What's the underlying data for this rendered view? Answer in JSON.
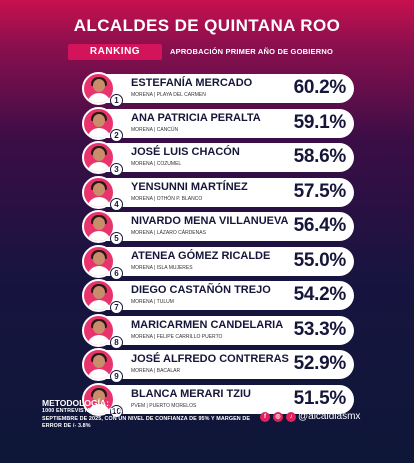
{
  "title": "ALCALDES DE QUINTANA ROO",
  "badge": "RANKING",
  "subtitle": "APROBACIÓN PRIMER AÑO DE GOBIERNO",
  "methodology": {
    "label": "METODOLOGÍA:",
    "text": "1000 ENTREVISTAS A NIVEL LOCAL, REALIZADAS DEL 15 AL 18 DE SEPTIEMBRE DE 2025, CON UN NIVEL DE CONFIANZA DE 95% Y MARGEN DE ERROR DE /- 3.8%"
  },
  "social": {
    "icons": [
      "facebook-icon",
      "instagram-icon",
      "tiktok-icon"
    ],
    "handle": "@alcaldiasmx"
  },
  "colors": {
    "accent": "#d4145a",
    "row_bg": "#ffffff",
    "text_dark": "#16163a"
  },
  "chart_data": {
    "type": "table",
    "title": "ALCALDES DE QUINTANA ROO",
    "rows": [
      {
        "rank": "1",
        "name": "ESTEFANÍA MERCADO",
        "meta": "MORENA | PLAYA DEL CARMEN",
        "value": 60.2,
        "label": "60.2%"
      },
      {
        "rank": "2",
        "name": "ANA PATRICIA PERALTA",
        "meta": "MORENA | CANCÚN",
        "value": 59.1,
        "label": "59.1%"
      },
      {
        "rank": "3",
        "name": "JOSÉ LUIS CHACÓN",
        "meta": "MORENA | COZUMEL",
        "value": 58.6,
        "label": "58.6%"
      },
      {
        "rank": "4",
        "name": "YENSUNNI MARTÍNEZ",
        "meta": "MORENA | OTHÓN P. BLANCO",
        "value": 57.5,
        "label": "57.5%"
      },
      {
        "rank": "5",
        "name": "NIVARDO MENA VILLANUEVA",
        "meta": "MORENA | LÁZARO CÁRDENAS",
        "value": 56.4,
        "label": "56.4%"
      },
      {
        "rank": "6",
        "name": "ATENEA GÓMEZ RICALDE",
        "meta": "MORENA | ISLA MUJERES",
        "value": 55.0,
        "label": "55.0%"
      },
      {
        "rank": "7",
        "name": "DIEGO CASTAÑÓN TREJO",
        "meta": "MORENA | TULUM",
        "value": 54.2,
        "label": "54.2%"
      },
      {
        "rank": "8",
        "name": "MARICARMEN CANDELARIA",
        "meta": "MORENA | FELIPE CARRILLO PUERTO",
        "value": 53.3,
        "label": "53.3%"
      },
      {
        "rank": "9",
        "name": "JOSÉ ALFREDO CONTRERAS",
        "meta": "MORENA | BACALAR",
        "value": 52.9,
        "label": "52.9%"
      },
      {
        "rank": "10",
        "name": "BLANCA MERARI TZIU",
        "meta": "PVEM | PUERTO MORELOS",
        "value": 51.5,
        "label": "51.5%"
      }
    ]
  }
}
